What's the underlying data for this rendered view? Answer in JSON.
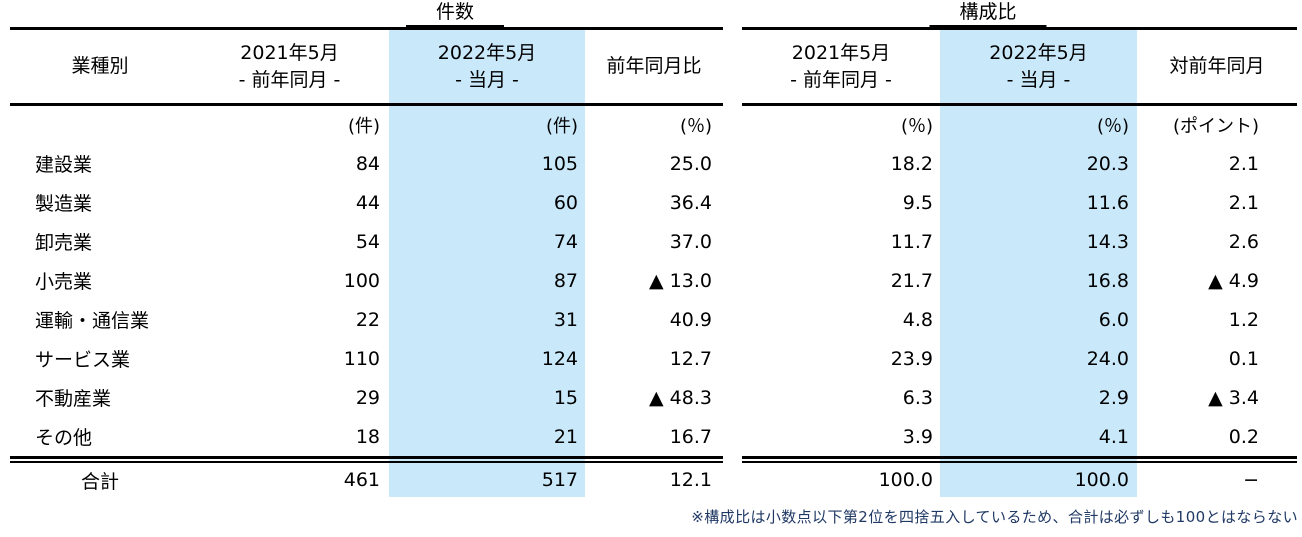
{
  "colors": {
    "highlight_column": "#c9e9fb",
    "border": "#000000",
    "note_text": "#1f3864"
  },
  "tables": [
    {
      "title": "件数",
      "row_header": "業種別",
      "columns": [
        {
          "line1": "2021年5月",
          "line2": "- 前年同月 -",
          "unit": "(件)"
        },
        {
          "line1": "2022年5月",
          "line2": "- 当月 -",
          "unit": "(件)"
        },
        {
          "line1": "前年同月比",
          "line2": "",
          "unit": "(％)"
        }
      ]
    },
    {
      "title": "構成比",
      "columns": [
        {
          "line1": "2021年5月",
          "line2": "- 前年同月 -",
          "unit": "(％)"
        },
        {
          "line1": "2022年5月",
          "line2": "- 当月 -",
          "unit": "(％)"
        },
        {
          "line1": "対前年同月",
          "line2": "",
          "unit": "(ポイント)"
        }
      ]
    }
  ],
  "rows": [
    {
      "label": "建設業",
      "counts": [
        "84",
        "105",
        "25.0"
      ],
      "shares": [
        "18.2",
        "20.3",
        "2.1"
      ]
    },
    {
      "label": "製造業",
      "counts": [
        "44",
        "60",
        "36.4"
      ],
      "shares": [
        "9.5",
        "11.6",
        "2.1"
      ]
    },
    {
      "label": "卸売業",
      "counts": [
        "54",
        "74",
        "37.0"
      ],
      "shares": [
        "11.7",
        "14.3",
        "2.6"
      ]
    },
    {
      "label": "小売業",
      "counts": [
        "100",
        "87",
        "▲ 13.0"
      ],
      "shares": [
        "21.7",
        "16.8",
        "▲ 4.9"
      ]
    },
    {
      "label": "運輸・通信業",
      "counts": [
        "22",
        "31",
        "40.9"
      ],
      "shares": [
        "4.8",
        "6.0",
        "1.2"
      ]
    },
    {
      "label": "サービス業",
      "counts": [
        "110",
        "124",
        "12.7"
      ],
      "shares": [
        "23.9",
        "24.0",
        "0.1"
      ]
    },
    {
      "label": "不動産業",
      "counts": [
        "29",
        "15",
        "▲ 48.3"
      ],
      "shares": [
        "6.3",
        "2.9",
        "▲ 3.4"
      ]
    },
    {
      "label": "その他",
      "counts": [
        "18",
        "21",
        "16.7"
      ],
      "shares": [
        "3.9",
        "4.1",
        "0.2"
      ]
    }
  ],
  "total": {
    "label": "合計",
    "counts": [
      "461",
      "517",
      "12.1"
    ],
    "shares": [
      "100.0",
      "100.0",
      "−"
    ]
  },
  "note": "※構成比は小数点以下第2位を四捨五入しているため、合計は必ずしも100とはならない"
}
